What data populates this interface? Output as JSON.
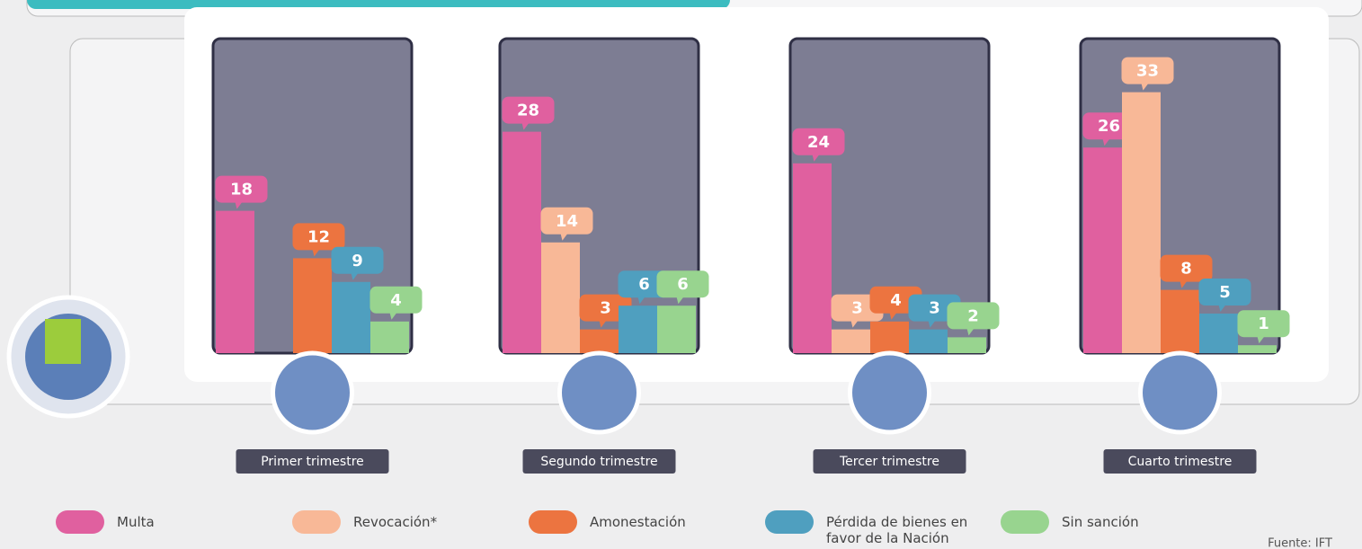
{
  "chart_data": {
    "type": "bar",
    "categories": [
      "Primer trimestre",
      "Segundo trimestre",
      "Tercer trimestre",
      "Cuarto trimestre"
    ],
    "series": [
      {
        "name": "Multa",
        "color": "#e0609f",
        "values": [
          18,
          28,
          24,
          26
        ]
      },
      {
        "name": "Revocación*",
        "color": "#f8b897",
        "values": [
          null,
          14,
          3,
          33
        ]
      },
      {
        "name": "Amonestación",
        "color": "#ec7440",
        "values": [
          12,
          3,
          4,
          8
        ]
      },
      {
        "name": "Pérdida de bienes en favor de la Nación",
        "color": "#4f9fbf",
        "values": [
          9,
          6,
          3,
          5
        ]
      },
      {
        "name": "Sin sanción",
        "color": "#98d48f",
        "values": [
          4,
          6,
          2,
          1
        ]
      }
    ],
    "source": "Fuente: IFT"
  }
}
